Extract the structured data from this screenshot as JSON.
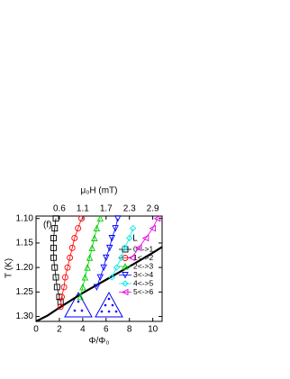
{
  "chart_data": {
    "type": "scatter",
    "title": "(f)",
    "x_label": "Φ/Φ₀",
    "y_label": "T (K)",
    "x2_label": "μ₀H (mT)",
    "xlim": [
      0,
      10.8
    ],
    "xticks": [
      0,
      2,
      4,
      6,
      8,
      10
    ],
    "x2lim": [
      0,
      3.089
    ],
    "x2ticks": [
      {
        "value": 0.572,
        "label": "0.6"
      },
      {
        "value": 1.144,
        "label": "1.1"
      },
      {
        "value": 1.716,
        "label": "1.7"
      },
      {
        "value": 2.288,
        "label": "2.3"
      },
      {
        "value": 2.86,
        "label": "2.9"
      }
    ],
    "ylim": [
      1.31,
      1.095
    ],
    "inverted_y": true,
    "yticks": [
      {
        "value": 1.1,
        "label": "1.10"
      },
      {
        "value": 1.15,
        "label": "1.15"
      },
      {
        "value": 1.2,
        "label": "1.20"
      },
      {
        "value": 1.25,
        "label": "1.25"
      },
      {
        "value": 1.3,
        "label": "1.30"
      }
    ],
    "legend_title": "L",
    "legend": "lower right",
    "series": [
      {
        "name": "0<->1",
        "color": "#000000",
        "marker": "square",
        "x": [
          1.7,
          1.6,
          1.5,
          1.5,
          1.5,
          1.6,
          1.7,
          1.8,
          2.0,
          2.1
        ],
        "values": [
          1.1,
          1.12,
          1.14,
          1.16,
          1.18,
          1.2,
          1.22,
          1.24,
          1.26,
          1.27
        ]
      },
      {
        "name": "1<->2",
        "color": "#ff0000",
        "marker": "circle",
        "x": [
          3.9,
          3.6,
          3.3,
          3.1,
          2.9,
          2.7,
          2.5,
          2.4,
          2.2,
          2.1
        ],
        "values": [
          1.1,
          1.12,
          1.14,
          1.16,
          1.18,
          1.2,
          1.22,
          1.24,
          1.26,
          1.28
        ]
      },
      {
        "name": "2<->3",
        "color": "#00cc00",
        "marker": "triangle-up",
        "x": [
          5.5,
          5.2,
          5.0,
          4.8,
          4.6,
          4.4,
          4.2,
          4.0,
          3.8
        ],
        "values": [
          1.1,
          1.12,
          1.14,
          1.16,
          1.18,
          1.2,
          1.22,
          1.24,
          1.26
        ]
      },
      {
        "name": "3<->4",
        "color": "#0000ff",
        "marker": "triangle-down",
        "x": [
          7.0,
          6.8,
          6.5,
          6.3,
          6.0,
          5.8,
          5.5,
          5.2
        ],
        "values": [
          1.1,
          1.12,
          1.14,
          1.16,
          1.18,
          1.2,
          1.22,
          1.24
        ]
      },
      {
        "name": "4<->5",
        "color": "#00e5e5",
        "marker": "diamond",
        "x": [
          8.3,
          8.0,
          7.6,
          7.3,
          6.9,
          6.5
        ],
        "values": [
          1.12,
          1.14,
          1.16,
          1.18,
          1.2,
          1.22
        ]
      },
      {
        "name": "5<->6",
        "color": "#e000e0",
        "marker": "triangle-left",
        "x": [
          10.4,
          10.0,
          9.4,
          8.8,
          8.2
        ],
        "values": [
          1.1,
          1.12,
          1.14,
          1.16,
          1.18
        ]
      }
    ],
    "boundary": {
      "color": "#000000",
      "x": [
        0,
        1,
        2,
        4,
        6,
        8,
        10,
        10.8
      ],
      "values": [
        1.31,
        1.298,
        1.282,
        1.252,
        1.225,
        1.198,
        1.17,
        1.158
      ]
    }
  }
}
